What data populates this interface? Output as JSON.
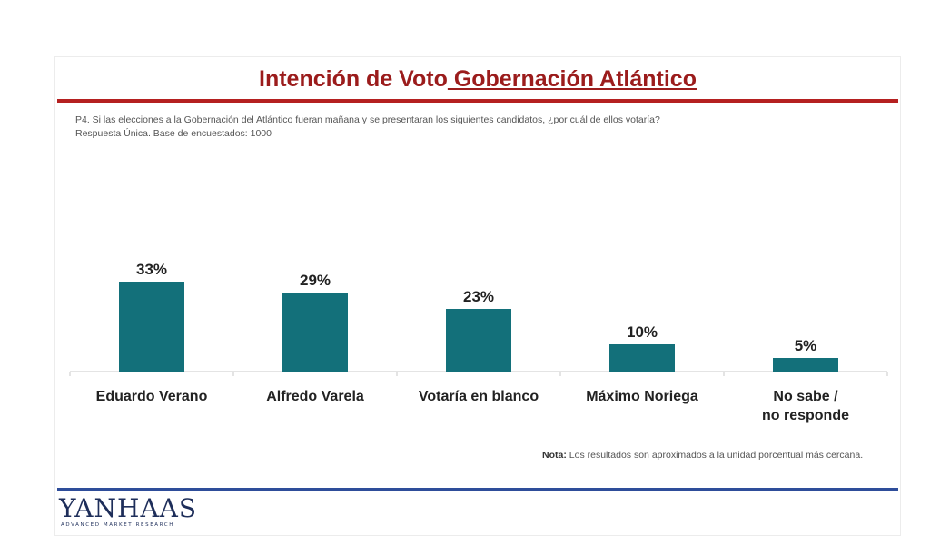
{
  "slide": {
    "title_part1": "Intención de Voto",
    "title_part2": " Gobernación Atlántico",
    "question_line1": "P4. Si las elecciones a la Gobernación del Atlántico fueran mañana y se presentaran los siguientes candidatos, ¿por cuál de ellos votaría?",
    "question_line2": "Respuesta Única. Base de encuestados: 1000",
    "note_label": "Nota:",
    "note_text": " Los resultados son aproximados a la unidad porcentual más cercana.",
    "logo_main": "YANHAAS",
    "logo_tagline": "ADVANCED MARKET RESEARCH",
    "colors": {
      "title": "#9b1c1c",
      "title_rule": "#b52020",
      "bar": "#13707a",
      "bottom_rule": "#2e4d9a",
      "logo": "#1e2e5a",
      "logo_accent": "#d4a64a"
    }
  },
  "chart_data": {
    "type": "bar",
    "categories": [
      "Eduardo Verano",
      "Alfredo Varela",
      "Votaría en blanco",
      "Máximo Noriega",
      "No sabe / no responde"
    ],
    "values": [
      33,
      29,
      23,
      10,
      5
    ],
    "data_labels": [
      "33%",
      "29%",
      "23%",
      "10%",
      "5%"
    ],
    "unit": "%",
    "title": "",
    "xlabel": "",
    "ylabel": "",
    "ylim": [
      0,
      40
    ],
    "grid": false,
    "legend": "none"
  }
}
